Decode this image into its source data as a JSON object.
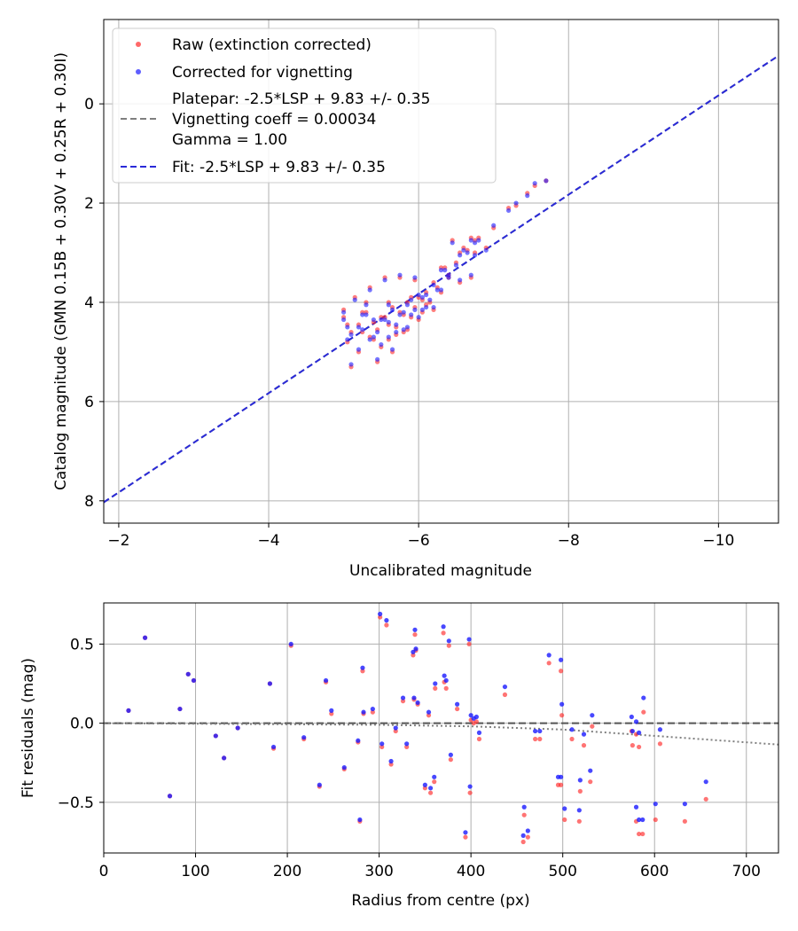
{
  "colors": {
    "raw": "#ff2a2a",
    "corrected": "#1a1aff",
    "platepar_line": "#7f7f7f",
    "fit_line": "#2a2ad8",
    "grid": "#b0b0b0",
    "trend": "#808080"
  },
  "chart_data": [
    {
      "type": "scatter",
      "xlabel": "Uncalibrated magnitude",
      "ylabel": "Catalog magnitude (GMN 0.15B + 0.30V + 0.25R + 0.30I)",
      "xlim": [
        -1.8,
        -10.8
      ],
      "ylim": [
        8.45,
        -1.7
      ],
      "x_inverted": true,
      "y_inverted": true,
      "grid": true,
      "legend_position": "top-left",
      "xticks": [
        -2,
        -4,
        -6,
        -8,
        -10
      ],
      "xtick_labels": [
        "−2",
        "−4",
        "−6",
        "−8",
        "−10"
      ],
      "yticks": [
        0,
        2,
        4,
        6,
        8
      ],
      "ytick_labels": [
        "0",
        "2",
        "4",
        "6",
        "8"
      ],
      "legend": {
        "raw": "Raw (extinction corrected)",
        "corrected": "Corrected for vignetting",
        "platepar_lines": [
          "Platepar: -2.5*LSP + 9.83 +/- 0.35",
          "Vignetting coeff = 0.00034",
          "Gamma = 1.00"
        ],
        "fit": "Fit: -2.5*LSP + 9.83 +/- 0.35"
      },
      "lines": [
        {
          "name": "platepar",
          "x": [
            -1.8,
            -10.8
          ],
          "y": [
            8.03,
            -0.97
          ]
        },
        {
          "name": "fit",
          "x": [
            -1.8,
            -10.8
          ],
          "y": [
            8.03,
            -0.97
          ]
        }
      ],
      "series": [
        {
          "name": "Raw (extinction corrected)",
          "points": [
            [
              -5.0,
              4.3
            ],
            [
              -5.05,
              4.8
            ],
            [
              -5.1,
              4.6
            ],
            [
              -5.1,
              5.3
            ],
            [
              -5.2,
              4.45
            ],
            [
              -5.25,
              4.6
            ],
            [
              -5.3,
              4.2
            ],
            [
              -5.35,
              4.7
            ],
            [
              -5.4,
              4.4
            ],
            [
              -5.45,
              4.55
            ],
            [
              -5.5,
              4.9
            ],
            [
              -5.55,
              4.3
            ],
            [
              -5.6,
              4.75
            ],
            [
              -5.65,
              4.1
            ],
            [
              -5.7,
              4.5
            ],
            [
              -5.75,
              4.2
            ],
            [
              -5.8,
              4.6
            ],
            [
              -5.85,
              4.0
            ],
            [
              -5.9,
              4.3
            ],
            [
              -5.95,
              4.1
            ],
            [
              -6.0,
              3.9
            ],
            [
              -6.05,
              4.2
            ],
            [
              -6.1,
              3.8
            ],
            [
              -6.15,
              4.0
            ],
            [
              -6.2,
              3.6
            ],
            [
              -6.3,
              3.8
            ],
            [
              -6.35,
              3.3
            ],
            [
              -6.4,
              3.5
            ],
            [
              -6.5,
              3.2
            ],
            [
              -6.55,
              3.6
            ],
            [
              -6.65,
              2.95
            ],
            [
              -6.7,
              3.5
            ],
            [
              -6.75,
              3.0
            ],
            [
              -6.8,
              2.7
            ],
            [
              -6.9,
              2.9
            ],
            [
              -7.0,
              2.5
            ],
            [
              -7.2,
              2.1
            ],
            [
              -7.3,
              2.05
            ],
            [
              -7.45,
              1.8
            ],
            [
              -7.55,
              1.65
            ],
            [
              -7.7,
              1.55
            ],
            [
              -5.0,
              4.15
            ],
            [
              -5.2,
              5.0
            ],
            [
              -5.3,
              4.0
            ],
            [
              -5.45,
              5.2
            ],
            [
              -5.5,
              4.3
            ],
            [
              -5.6,
              4.45
            ],
            [
              -5.7,
              4.65
            ],
            [
              -5.8,
              4.25
            ],
            [
              -5.9,
              3.9
            ],
            [
              -6.05,
              3.95
            ],
            [
              -6.2,
              4.15
            ],
            [
              -6.25,
              3.7
            ],
            [
              -6.4,
              3.45
            ],
            [
              -6.45,
              2.75
            ],
            [
              -6.6,
              2.9
            ],
            [
              -6.7,
              2.7
            ],
            [
              -5.15,
              3.9
            ],
            [
              -5.35,
              3.7
            ],
            [
              -5.55,
              3.5
            ],
            [
              -5.75,
              3.5
            ],
            [
              -5.65,
              5.0
            ],
            [
              -5.25,
              4.2
            ],
            [
              -5.4,
              4.75
            ],
            [
              -5.85,
              4.55
            ],
            [
              -6.0,
              4.35
            ],
            [
              -6.1,
              4.05
            ],
            [
              -6.3,
              3.3
            ],
            [
              -6.55,
              3.0
            ],
            [
              -6.75,
              2.75
            ],
            [
              -5.95,
              3.55
            ],
            [
              -5.05,
              4.45
            ],
            [
              -5.6,
              4.0
            ]
          ]
        },
        {
          "name": "Corrected for vignetting",
          "points": [
            [
              -5.0,
              4.35
            ],
            [
              -5.05,
              4.75
            ],
            [
              -5.1,
              4.65
            ],
            [
              -5.1,
              5.25
            ],
            [
              -5.2,
              4.5
            ],
            [
              -5.25,
              4.55
            ],
            [
              -5.3,
              4.25
            ],
            [
              -5.35,
              4.75
            ],
            [
              -5.4,
              4.35
            ],
            [
              -5.45,
              4.6
            ],
            [
              -5.5,
              4.85
            ],
            [
              -5.55,
              4.35
            ],
            [
              -5.6,
              4.7
            ],
            [
              -5.65,
              4.15
            ],
            [
              -5.7,
              4.45
            ],
            [
              -5.75,
              4.25
            ],
            [
              -5.8,
              4.55
            ],
            [
              -5.85,
              4.05
            ],
            [
              -5.9,
              4.25
            ],
            [
              -5.95,
              4.15
            ],
            [
              -6.0,
              3.85
            ],
            [
              -6.05,
              4.15
            ],
            [
              -6.1,
              3.85
            ],
            [
              -6.15,
              3.95
            ],
            [
              -6.2,
              3.65
            ],
            [
              -6.3,
              3.75
            ],
            [
              -6.35,
              3.35
            ],
            [
              -6.4,
              3.45
            ],
            [
              -6.5,
              3.25
            ],
            [
              -6.55,
              3.55
            ],
            [
              -6.65,
              3.0
            ],
            [
              -6.7,
              3.45
            ],
            [
              -6.75,
              3.05
            ],
            [
              -6.8,
              2.75
            ],
            [
              -6.9,
              2.95
            ],
            [
              -7.0,
              2.45
            ],
            [
              -7.2,
              2.15
            ],
            [
              -7.3,
              2.0
            ],
            [
              -7.45,
              1.85
            ],
            [
              -7.55,
              1.6
            ],
            [
              -7.7,
              1.55
            ],
            [
              -5.0,
              4.2
            ],
            [
              -5.2,
              4.95
            ],
            [
              -5.3,
              4.05
            ],
            [
              -5.45,
              5.15
            ],
            [
              -5.5,
              4.35
            ],
            [
              -5.6,
              4.4
            ],
            [
              -5.7,
              4.6
            ],
            [
              -5.8,
              4.2
            ],
            [
              -5.9,
              3.95
            ],
            [
              -6.05,
              3.9
            ],
            [
              -6.2,
              4.1
            ],
            [
              -6.25,
              3.75
            ],
            [
              -6.4,
              3.5
            ],
            [
              -6.45,
              2.8
            ],
            [
              -6.6,
              2.95
            ],
            [
              -6.7,
              2.75
            ],
            [
              -5.15,
              3.95
            ],
            [
              -5.35,
              3.75
            ],
            [
              -5.55,
              3.55
            ],
            [
              -5.75,
              3.45
            ],
            [
              -5.65,
              4.95
            ],
            [
              -5.25,
              4.25
            ],
            [
              -5.4,
              4.7
            ],
            [
              -5.85,
              4.5
            ],
            [
              -6.0,
              4.3
            ],
            [
              -6.1,
              4.1
            ],
            [
              -6.3,
              3.35
            ],
            [
              -6.55,
              3.05
            ],
            [
              -6.75,
              2.8
            ],
            [
              -5.95,
              3.5
            ],
            [
              -5.05,
              4.5
            ],
            [
              -5.6,
              4.05
            ]
          ]
        }
      ]
    },
    {
      "type": "scatter",
      "xlabel": "Radius from centre (px)",
      "ylabel": "Fit residuals (mag)",
      "xlim": [
        0,
        735
      ],
      "ylim": [
        -0.82,
        0.76
      ],
      "grid": true,
      "xticks": [
        0,
        100,
        200,
        300,
        400,
        500,
        600,
        700
      ],
      "xtick_labels": [
        "0",
        "100",
        "200",
        "300",
        "400",
        "500",
        "600",
        "700"
      ],
      "yticks": [
        -0.5,
        0.0,
        0.5
      ],
      "ytick_labels": [
        "−0.5",
        "0.0",
        "0.5"
      ],
      "lines": [
        {
          "name": "zero",
          "x": [
            0,
            735
          ],
          "y": [
            0,
            0
          ]
        },
        {
          "name": "vignetting_trend",
          "x": [
            0,
            300,
            400,
            500,
            600,
            735
          ],
          "y": [
            0.0,
            -0.01,
            -0.02,
            -0.04,
            -0.08,
            -0.135
          ]
        }
      ],
      "points": [
        [
          27,
          0.08,
          0.08
        ],
        [
          45,
          0.54,
          0.54
        ],
        [
          72,
          -0.46,
          -0.46
        ],
        [
          83,
          0.09,
          0.09
        ],
        [
          92,
          0.31,
          0.31
        ],
        [
          98,
          0.27,
          0.27
        ],
        [
          122,
          -0.08,
          -0.08
        ],
        [
          131,
          -0.22,
          -0.22
        ],
        [
          146,
          -0.03,
          -0.03
        ],
        [
          181,
          0.25,
          0.25
        ],
        [
          185,
          -0.16,
          -0.15
        ],
        [
          204,
          0.49,
          0.5
        ],
        [
          218,
          -0.1,
          -0.09
        ],
        [
          235,
          -0.4,
          -0.39
        ],
        [
          242,
          0.26,
          0.27
        ],
        [
          248,
          0.06,
          0.08
        ],
        [
          262,
          -0.29,
          -0.28
        ],
        [
          277,
          -0.12,
          -0.11
        ],
        [
          279,
          -0.62,
          -0.61
        ],
        [
          282,
          0.33,
          0.35
        ],
        [
          283,
          0.06,
          0.07
        ],
        [
          293,
          0.07,
          0.09
        ],
        [
          301,
          0.67,
          0.69
        ],
        [
          303,
          -0.15,
          -0.13
        ],
        [
          308,
          0.62,
          0.65
        ],
        [
          313,
          -0.26,
          -0.24
        ],
        [
          318,
          -0.05,
          -0.03
        ],
        [
          326,
          0.14,
          0.16
        ],
        [
          330,
          -0.15,
          -0.13
        ],
        [
          337,
          0.43,
          0.45
        ],
        [
          338,
          0.15,
          0.16
        ],
        [
          339,
          0.56,
          0.59
        ],
        [
          340,
          0.46,
          0.47
        ],
        [
          342,
          0.12,
          0.13
        ],
        [
          350,
          -0.41,
          -0.39
        ],
        [
          354,
          0.05,
          0.07
        ],
        [
          356,
          -0.44,
          -0.41
        ],
        [
          360,
          -0.37,
          -0.34
        ],
        [
          361,
          0.22,
          0.25
        ],
        [
          370,
          0.57,
          0.61
        ],
        [
          371,
          0.26,
          0.3
        ],
        [
          373,
          0.22,
          0.27
        ],
        [
          376,
          0.49,
          0.52
        ],
        [
          378,
          -0.23,
          -0.2
        ],
        [
          385,
          0.09,
          0.12
        ],
        [
          394,
          -0.72,
          -0.69
        ],
        [
          398,
          0.5,
          0.53
        ],
        [
          399,
          -0.44,
          -0.4
        ],
        [
          400,
          0.02,
          0.05
        ],
        [
          403,
          0.0,
          0.03
        ],
        [
          406,
          0.01,
          0.04
        ],
        [
          409,
          -0.1,
          -0.06
        ],
        [
          437,
          0.18,
          0.23
        ],
        [
          457,
          -0.75,
          -0.71
        ],
        [
          458,
          -0.58,
          -0.53
        ],
        [
          462,
          -0.72,
          -0.68
        ],
        [
          470,
          -0.1,
          -0.05
        ],
        [
          475,
          -0.1,
          -0.05
        ],
        [
          485,
          0.38,
          0.43
        ],
        [
          495,
          -0.39,
          -0.34
        ],
        [
          498,
          -0.39,
          -0.34
        ],
        [
          498,
          0.33,
          0.4
        ],
        [
          499,
          0.05,
          0.12
        ],
        [
          502,
          -0.61,
          -0.54
        ],
        [
          510,
          -0.1,
          -0.04
        ],
        [
          518,
          -0.62,
          -0.55
        ],
        [
          519,
          -0.43,
          -0.36
        ],
        [
          523,
          -0.14,
          -0.07
        ],
        [
          530,
          -0.37,
          -0.3
        ],
        [
          532,
          -0.02,
          0.05
        ],
        [
          575,
          -0.05,
          0.04
        ],
        [
          576,
          -0.14,
          -0.05
        ],
        [
          580,
          -0.62,
          -0.53
        ],
        [
          580,
          -0.07,
          0.01
        ],
        [
          583,
          -0.7,
          -0.61
        ],
        [
          583,
          -0.15,
          -0.06
        ],
        [
          587,
          -0.7,
          -0.61
        ],
        [
          588,
          0.07,
          0.16
        ],
        [
          601,
          -0.61,
          -0.51
        ],
        [
          606,
          -0.13,
          -0.04
        ],
        [
          633,
          -0.62,
          -0.51
        ],
        [
          656,
          -0.48,
          -0.37
        ]
      ]
    }
  ]
}
